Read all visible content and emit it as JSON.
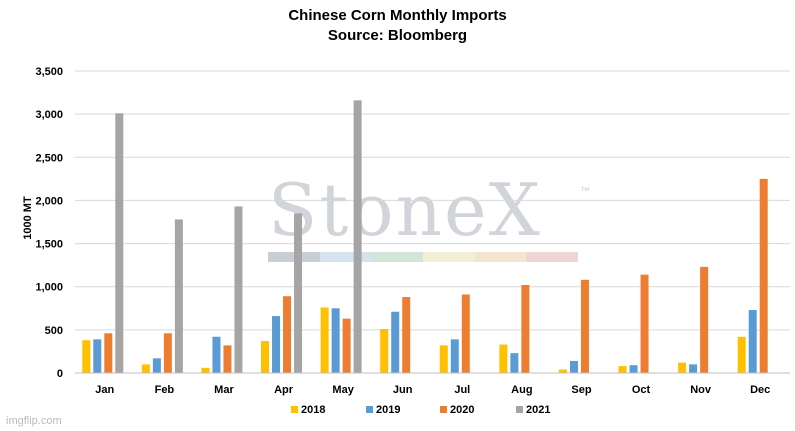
{
  "title": "Chinese Corn Monthly Imports",
  "subtitle": "Source: Bloomberg",
  "watermark": {
    "text": "StoneX",
    "tm": "™"
  },
  "footer": "imgflip.com",
  "chart_data": {
    "type": "bar",
    "title": "Chinese Corn Monthly Imports",
    "subtitle": "Source: Bloomberg",
    "xlabel": "",
    "ylabel": "1000 MT",
    "ylim": [
      0,
      3500
    ],
    "yticks": [
      0,
      500,
      1000,
      1500,
      2000,
      2500,
      3000,
      3500
    ],
    "ytick_labels": [
      "0",
      "500",
      "1,000",
      "1,500",
      "2,000",
      "2,500",
      "3,000",
      "3,500"
    ],
    "grid": "horizontal",
    "legend": "bottom",
    "categories": [
      "Jan",
      "Feb",
      "Mar",
      "Apr",
      "May",
      "Jun",
      "Jul",
      "Aug",
      "Sep",
      "Oct",
      "Nov",
      "Dec"
    ],
    "series": [
      {
        "name": "2018",
        "color": "#FFC000",
        "values": [
          380,
          100,
          60,
          370,
          760,
          510,
          320,
          330,
          40,
          80,
          120,
          420
        ]
      },
      {
        "name": "2019",
        "color": "#5B9BD5",
        "values": [
          390,
          170,
          420,
          660,
          750,
          710,
          390,
          230,
          140,
          90,
          100,
          730
        ]
      },
      {
        "name": "2020",
        "color": "#ED7D31",
        "values": [
          460,
          460,
          320,
          890,
          630,
          880,
          910,
          1020,
          1080,
          1140,
          1230,
          2250
        ]
      },
      {
        "name": "2021",
        "color": "#A5A5A5",
        "values": [
          3010,
          1780,
          1930,
          1850,
          3160,
          null,
          null,
          null,
          null,
          null,
          null,
          null
        ]
      }
    ]
  }
}
